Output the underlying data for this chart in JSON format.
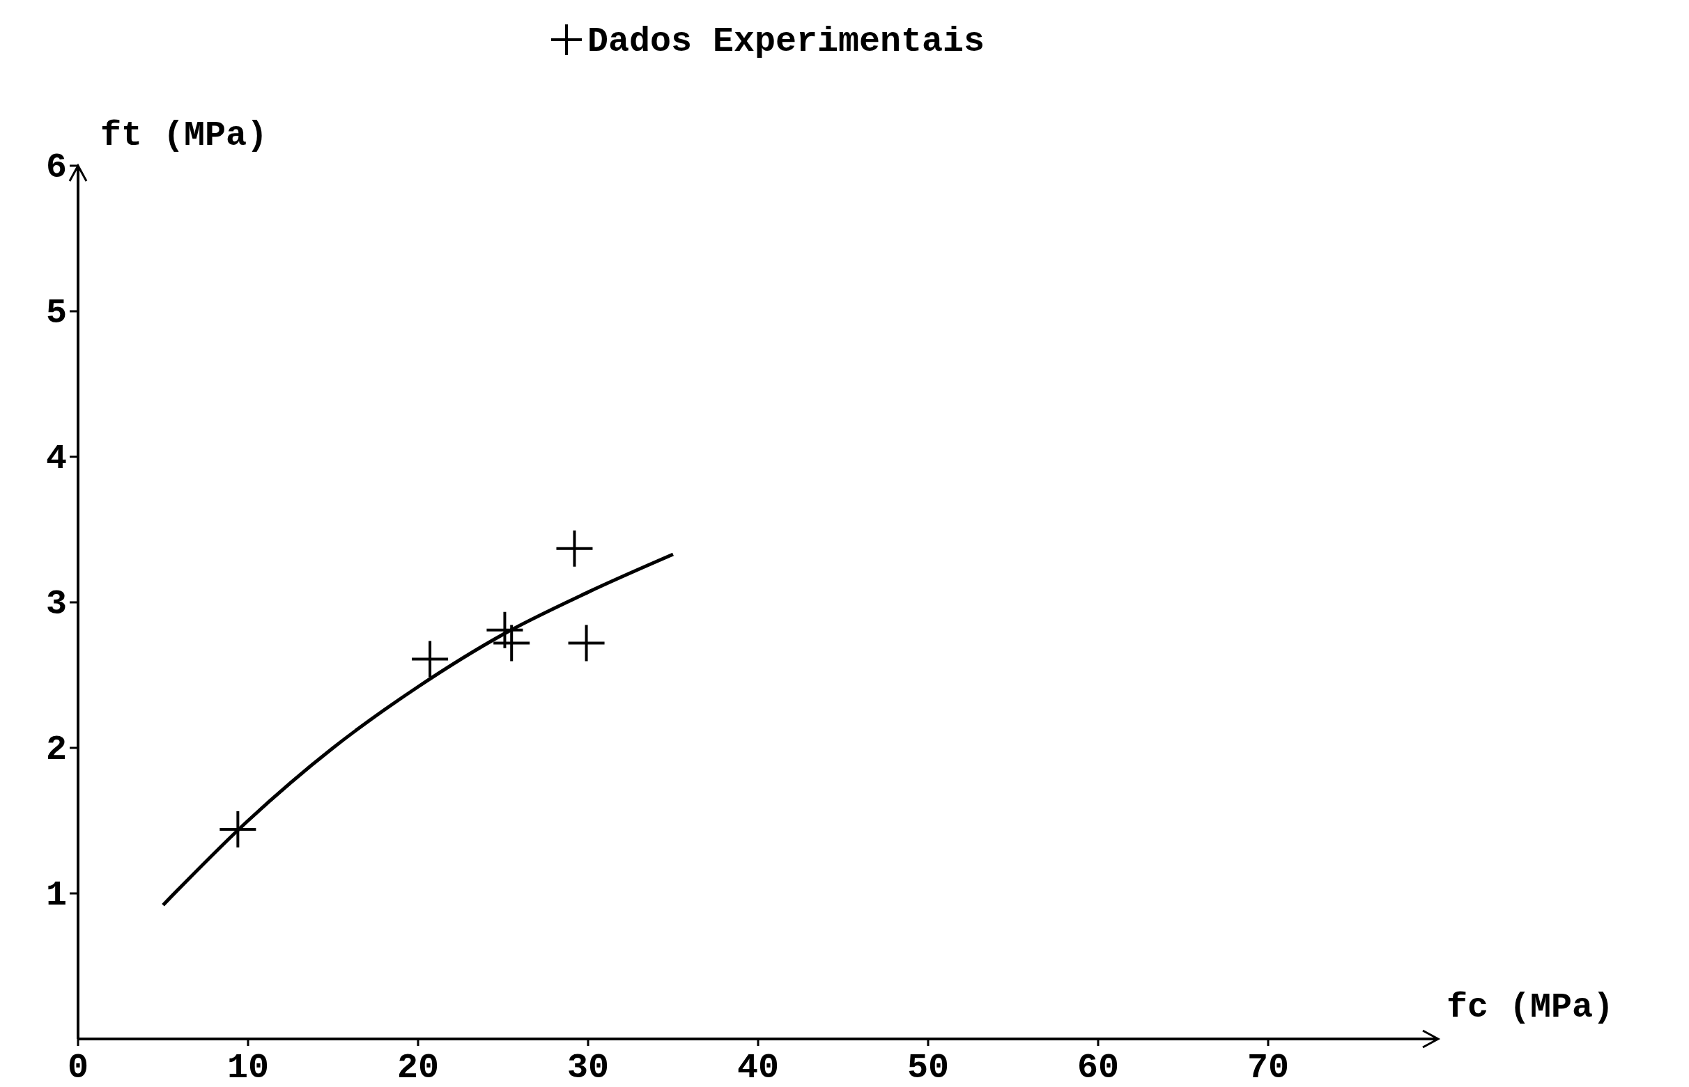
{
  "chart_data": {
    "type": "scatter",
    "xlabel": "fc (MPa)",
    "ylabel": "ft (MPa)",
    "xlim": [
      0,
      80
    ],
    "ylim": [
      0,
      6
    ],
    "xticks": [
      0,
      10,
      20,
      30,
      40,
      50,
      60,
      70
    ],
    "yticks": [
      1,
      2,
      3,
      4,
      5,
      6
    ],
    "legend": "top",
    "marker": "cross",
    "grid": false,
    "series": [
      {
        "name": "Dados Experimentais",
        "color": "#000000",
        "x": [
          9.4,
          20.7,
          25.1,
          25.5,
          29.2,
          29.9
        ],
        "values": [
          1.44,
          2.61,
          2.81,
          2.72,
          3.37,
          2.72
        ]
      },
      {
        "type": "line",
        "color": "#000000",
        "marker": "none",
        "x": [
          5,
          10,
          15,
          20,
          25,
          30,
          35
        ],
        "values": [
          0.92,
          1.5,
          2.0,
          2.42,
          2.78,
          3.07,
          3.33
        ]
      }
    ]
  }
}
